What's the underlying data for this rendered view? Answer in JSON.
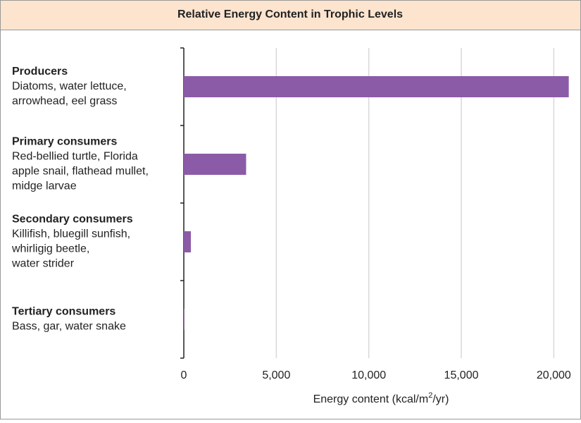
{
  "chart_data": {
    "type": "bar",
    "orientation": "horizontal",
    "title": "Relative Energy Content in Trophic Levels",
    "categories": [
      {
        "name": "Producers",
        "lines": [
          "Diatoms, water lettuce,",
          "arrowhead, eel grass"
        ]
      },
      {
        "name": "Primary consumers",
        "lines": [
          "Red-bellied turtle, Florida",
          "apple snail, flathead mullet,",
          "midge larvae"
        ]
      },
      {
        "name": "Secondary consumers",
        "lines": [
          "Killifish, bluegill sunfish,",
          "whirligig beetle,",
          "water strider"
        ]
      },
      {
        "name": "Tertiary consumers",
        "lines": [
          "Bass, gar, water snake"
        ]
      }
    ],
    "values": [
      20810,
      3368,
      383,
      21
    ],
    "color": "#8c5ba7",
    "xlim": [
      0,
      20900
    ],
    "xticks": [
      0,
      {
        "value": 5000,
        "label": "5,000"
      },
      {
        "value": 10000,
        "label": "10,000"
      },
      {
        "value": 15000,
        "label": "15,000"
      },
      {
        "value": 20000,
        "label": "20,000"
      }
    ],
    "xlabel": {
      "before": "Energy content (kcal/m",
      "sup": "2",
      "after": "/yr)"
    },
    "grid": true
  }
}
